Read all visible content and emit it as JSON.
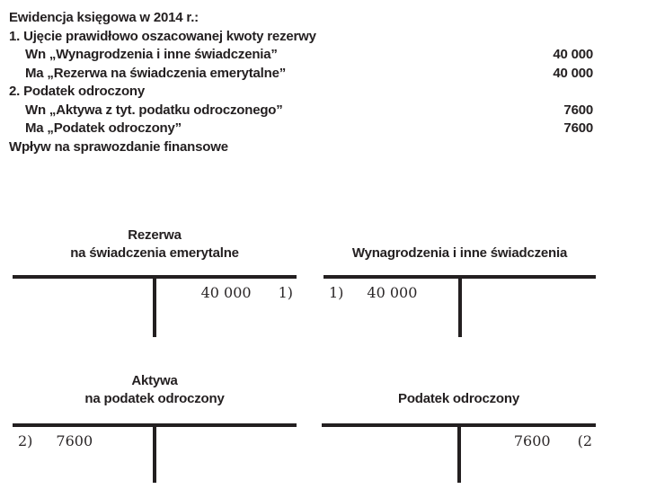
{
  "page": {
    "background": "#ffffff",
    "text_color": "#231f20"
  },
  "journal": {
    "lines": [
      {
        "text": "Ewidencja księgowa w 2014 r.:",
        "indent": 0,
        "amount": ""
      },
      {
        "text": "1. Ujęcie prawidłowo oszacowanej kwoty rezerwy",
        "indent": 0,
        "amount": ""
      },
      {
        "text": "Wn „Wynagrodzenia i inne świadczenia”",
        "indent": 1,
        "amount": "40 000"
      },
      {
        "text": "Ma „Rezerwa na świadczenia emerytalne”",
        "indent": 1,
        "amount": "40 000"
      },
      {
        "text": "2. Podatek odroczony",
        "indent": 0,
        "amount": ""
      },
      {
        "text": "Wn „Aktywa z tyt. podatku odroczonego”",
        "indent": 1,
        "amount": "7600"
      },
      {
        "text": "Ma „Podatek odroczony”",
        "indent": 1,
        "amount": "7600"
      },
      {
        "text": "Wpływ na sprawozdanie finansowe",
        "indent": 0,
        "amount": ""
      }
    ]
  },
  "t_accounts": [
    {
      "title_line1": "Rezerwa",
      "title_line2": "na świadczenia emerytalne",
      "debit_ref": "",
      "debit_amount": "",
      "credit_amount": "40 000",
      "credit_ref": "1)"
    },
    {
      "title_line1": "Wynagrodzenia i inne świadczenia",
      "title_line2": "",
      "debit_ref": "1)",
      "debit_amount": "40 000",
      "credit_amount": "",
      "credit_ref": ""
    },
    {
      "title_line1": "Aktywa",
      "title_line2": "na podatek odroczony",
      "debit_ref": "2)",
      "debit_amount": "7600",
      "credit_amount": "",
      "credit_ref": ""
    },
    {
      "title_line1": "Podatek odroczony",
      "title_line2": "",
      "debit_ref": "",
      "debit_amount": "",
      "credit_amount": "7600",
      "credit_ref": "(2"
    }
  ]
}
